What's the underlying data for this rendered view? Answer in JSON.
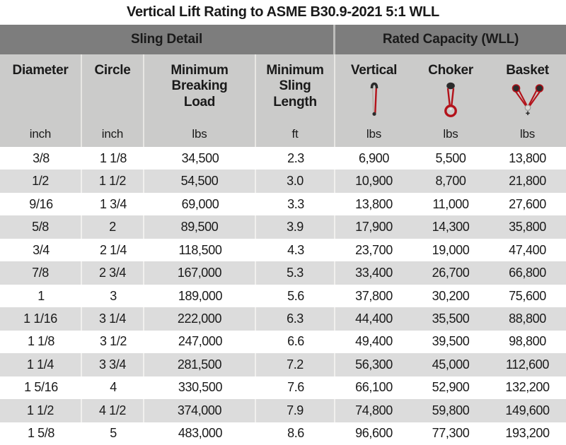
{
  "title": "Vertical Lift Rating to ASME B30.9-2021 5:1 WLL",
  "colors": {
    "accent_red": "#b3121a",
    "header_dark_gray": "#7d7d7d",
    "header_light_gray": "#cbcbca",
    "row_alt_gray": "#dcdcdc",
    "text": "#1a1a1a"
  },
  "chart_data": {
    "type": "table",
    "title": "Vertical Lift Rating to ASME B30.9-2021 5:1 WLL",
    "groups": [
      "Sling Detail",
      "Rated Capacity (WLL)"
    ],
    "group_spans": [
      4,
      3
    ],
    "column_keys": [
      "diameter",
      "circle",
      "min_breaking_load",
      "min_sling_length",
      "vertical",
      "choker",
      "basket"
    ],
    "columns": [
      {
        "label": "Diameter",
        "unit": "inch"
      },
      {
        "label": "Circle",
        "unit": "inch"
      },
      {
        "label": "Minimum Breaking Load",
        "unit": "lbs"
      },
      {
        "label": "Minimum Sling Length",
        "unit": "ft"
      },
      {
        "label": "Vertical",
        "unit": "lbs",
        "icon": "vertical-sling-icon"
      },
      {
        "label": "Choker",
        "unit": "lbs",
        "icon": "choker-sling-icon"
      },
      {
        "label": "Basket",
        "unit": "lbs",
        "icon": "basket-sling-icon"
      }
    ],
    "rows": [
      [
        "3/8",
        "1 1/8",
        "34,500",
        "2.3",
        "6,900",
        "5,500",
        "13,800"
      ],
      [
        "1/2",
        "1 1/2",
        "54,500",
        "3.0",
        "10,900",
        "8,700",
        "21,800"
      ],
      [
        "9/16",
        "1 3/4",
        "69,000",
        "3.3",
        "13,800",
        "11,000",
        "27,600"
      ],
      [
        "5/8",
        "2",
        "89,500",
        "3.9",
        "17,900",
        "14,300",
        "35,800"
      ],
      [
        "3/4",
        "2 1/4",
        "118,500",
        "4.3",
        "23,700",
        "19,000",
        "47,400"
      ],
      [
        "7/8",
        "2 3/4",
        "167,000",
        "5.3",
        "33,400",
        "26,700",
        "66,800"
      ],
      [
        "1",
        "3",
        "189,000",
        "5.6",
        "37,800",
        "30,200",
        "75,600"
      ],
      [
        "1 1/16",
        "3 1/4",
        "222,000",
        "6.3",
        "44,400",
        "35,500",
        "88,800"
      ],
      [
        "1 1/8",
        "3 1/2",
        "247,000",
        "6.6",
        "49,400",
        "39,500",
        "98,800"
      ],
      [
        "1 1/4",
        "3 3/4",
        "281,500",
        "7.2",
        "56,300",
        "45,000",
        "112,600"
      ],
      [
        "1 5/16",
        "4",
        "330,500",
        "7.6",
        "66,100",
        "52,900",
        "132,200"
      ],
      [
        "1 1/2",
        "4 1/2",
        "374,000",
        "7.9",
        "74,800",
        "59,800",
        "149,600"
      ],
      [
        "1 5/8",
        "5",
        "483,000",
        "8.6",
        "96,600",
        "77,300",
        "193,200"
      ]
    ],
    "row_striping": "alternating white and light gray, first data row white"
  }
}
